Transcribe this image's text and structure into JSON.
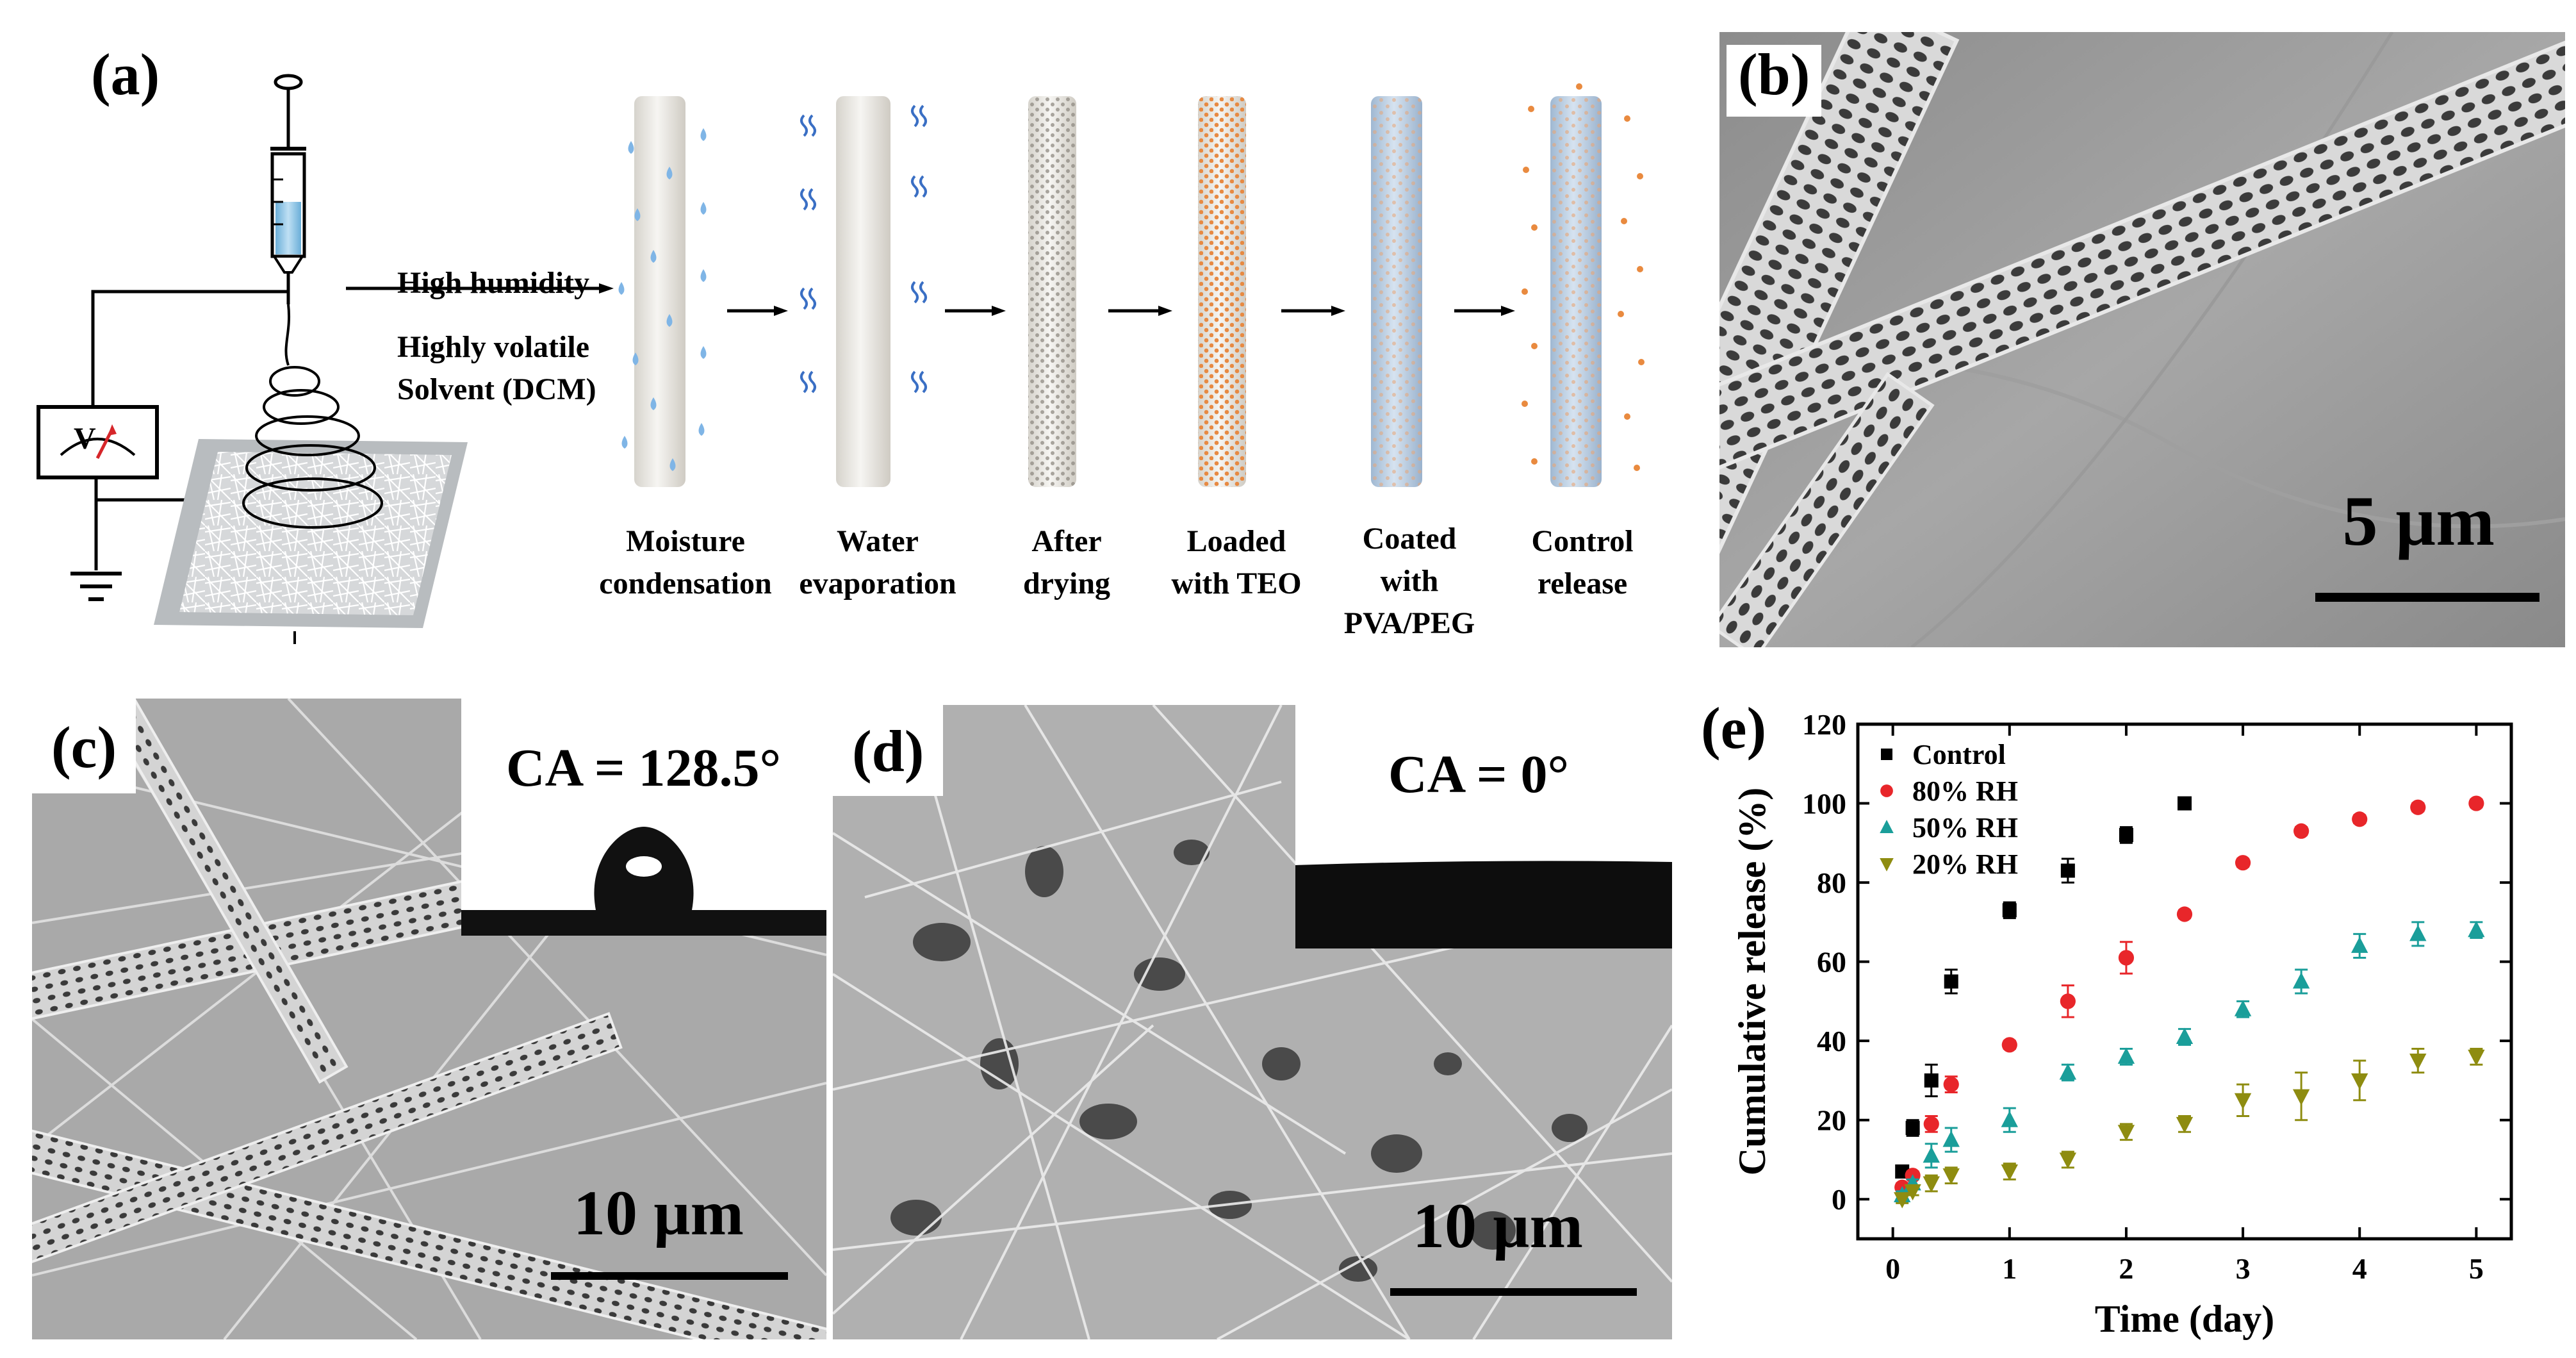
{
  "panel_a": {
    "label": "(a)",
    "conditions": [
      "High humidity",
      "Highly volatile",
      "Solvent (DCM)"
    ],
    "voltmeter_label": "V",
    "stages": [
      {
        "lines": [
          "Moisture",
          "condensation"
        ]
      },
      {
        "lines": [
          "Water",
          "evaporation"
        ]
      },
      {
        "lines": [
          "After",
          "drying"
        ]
      },
      {
        "lines": [
          "Loaded",
          "with TEO"
        ]
      },
      {
        "lines": [
          "Coated",
          "with",
          "PVA/PEG"
        ]
      },
      {
        "lines": [
          "Control",
          "release"
        ]
      }
    ]
  },
  "panel_b": {
    "label": "(b)",
    "scale_text": "5 µm"
  },
  "panel_c": {
    "label": "(c)",
    "scale_text": "10 µm",
    "contact_angle": "CA = 128.5°"
  },
  "panel_d": {
    "label": "(d)",
    "scale_text": "10 µm",
    "contact_angle": "CA = 0°"
  },
  "panel_e": {
    "label": "(e)"
  },
  "colors": {
    "control": "#000000",
    "rh80": "#e8262a",
    "rh50": "#1a9e9a",
    "rh20": "#8e8c10"
  },
  "chart_data": {
    "type": "scatter",
    "xlabel": "Time (day)",
    "ylabel": "Cumulative release (%)",
    "xlim": [
      -0.3,
      5.3
    ],
    "ylim": [
      -10,
      120
    ],
    "xticks": [
      0,
      1,
      2,
      3,
      4,
      5
    ],
    "yticks": [
      0,
      20,
      40,
      60,
      80,
      100,
      120
    ],
    "legend_position": "top-left",
    "series": [
      {
        "name": "Control",
        "marker": "square",
        "x": [
          0.08,
          0.17,
          0.33,
          0.5,
          1.0,
          1.5,
          2.0,
          2.5
        ],
        "y": [
          7,
          18,
          30,
          55,
          73,
          83,
          92,
          100
        ],
        "err": [
          1,
          2,
          4,
          3,
          2,
          3,
          2,
          1
        ]
      },
      {
        "name": "80% RH",
        "marker": "circle",
        "x": [
          0.08,
          0.17,
          0.33,
          0.5,
          1.0,
          1.5,
          2.0,
          2.5,
          3.0,
          3.5,
          4.0,
          4.5,
          5.0
        ],
        "y": [
          3,
          6,
          19,
          29,
          39,
          50,
          61,
          72,
          85,
          93,
          96,
          99,
          100
        ],
        "err": [
          1,
          1,
          2,
          2,
          1,
          4,
          4,
          1,
          1,
          1,
          1,
          1,
          1
        ]
      },
      {
        "name": "50% RH",
        "marker": "triangle-up",
        "x": [
          0.08,
          0.17,
          0.33,
          0.5,
          1.0,
          1.5,
          2.0,
          2.5,
          3.0,
          3.5,
          4.0,
          4.5,
          5.0
        ],
        "y": [
          1,
          4,
          11,
          15,
          20,
          32,
          36,
          41,
          48,
          55,
          64,
          67,
          68
        ],
        "err": [
          1,
          1,
          3,
          3,
          3,
          2,
          2,
          2,
          2,
          3,
          3,
          3,
          2
        ]
      },
      {
        "name": "20% RH",
        "marker": "triangle-down",
        "x": [
          0.08,
          0.17,
          0.33,
          0.5,
          1.0,
          1.5,
          2.0,
          2.5,
          3.0,
          3.5,
          4.0,
          4.5,
          5.0
        ],
        "y": [
          0,
          2,
          4,
          6,
          7,
          10,
          17,
          19,
          25,
          26,
          30,
          35,
          36
        ],
        "err": [
          1,
          1,
          2,
          2,
          2,
          2,
          2,
          2,
          4,
          6,
          5,
          3,
          2
        ]
      }
    ]
  }
}
